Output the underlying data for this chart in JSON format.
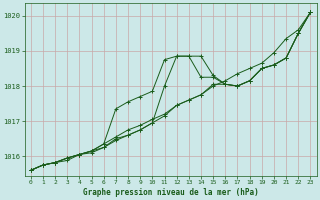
{
  "background_color": "#cce8e8",
  "grid_color_major": "#c8a8a8",
  "grid_color_minor": "#ddc8c8",
  "line_color": "#1a5c1a",
  "xlabel": "Graphe pression niveau de la mer (hPa)",
  "xlim": [
    -0.5,
    23.5
  ],
  "ylim": [
    1015.45,
    1020.35
  ],
  "yticks": [
    1016,
    1017,
    1018,
    1019,
    1020
  ],
  "xticks": [
    0,
    1,
    2,
    3,
    4,
    5,
    6,
    7,
    8,
    9,
    10,
    11,
    12,
    13,
    14,
    15,
    16,
    17,
    18,
    19,
    20,
    21,
    22,
    23
  ],
  "series": [
    [
      1015.6,
      1015.75,
      1015.82,
      1015.88,
      1016.05,
      1016.1,
      1016.25,
      1016.45,
      1016.6,
      1016.75,
      1016.95,
      1017.15,
      1017.45,
      1017.6,
      1017.75,
      1018.0,
      1018.15,
      1018.35,
      1018.5,
      1018.65,
      1018.95,
      1019.35,
      1019.6,
      1020.1
    ],
    [
      1015.6,
      1015.75,
      1015.82,
      1015.95,
      1016.05,
      1016.15,
      1016.25,
      1016.5,
      1016.6,
      1016.75,
      1016.95,
      1018.0,
      1018.85,
      1018.85,
      1018.25,
      1018.25,
      1018.05,
      1018.0,
      1018.15,
      1018.5,
      1018.6,
      1018.8,
      1019.5,
      1020.1
    ],
    [
      1015.6,
      1015.75,
      1015.82,
      1015.95,
      1016.05,
      1016.15,
      1016.35,
      1017.35,
      1017.55,
      1017.7,
      1017.85,
      1018.75,
      1018.85,
      1018.85,
      1018.85,
      1018.3,
      1018.05,
      1018.0,
      1018.15,
      1018.5,
      1018.6,
      1018.8,
      1019.5,
      1020.1
    ],
    [
      1015.6,
      1015.75,
      1015.82,
      1015.95,
      1016.05,
      1016.15,
      1016.35,
      1016.55,
      1016.75,
      1016.88,
      1017.05,
      1017.2,
      1017.45,
      1017.6,
      1017.75,
      1018.05,
      1018.05,
      1018.0,
      1018.15,
      1018.5,
      1018.6,
      1018.8,
      1019.5,
      1020.1
    ]
  ]
}
